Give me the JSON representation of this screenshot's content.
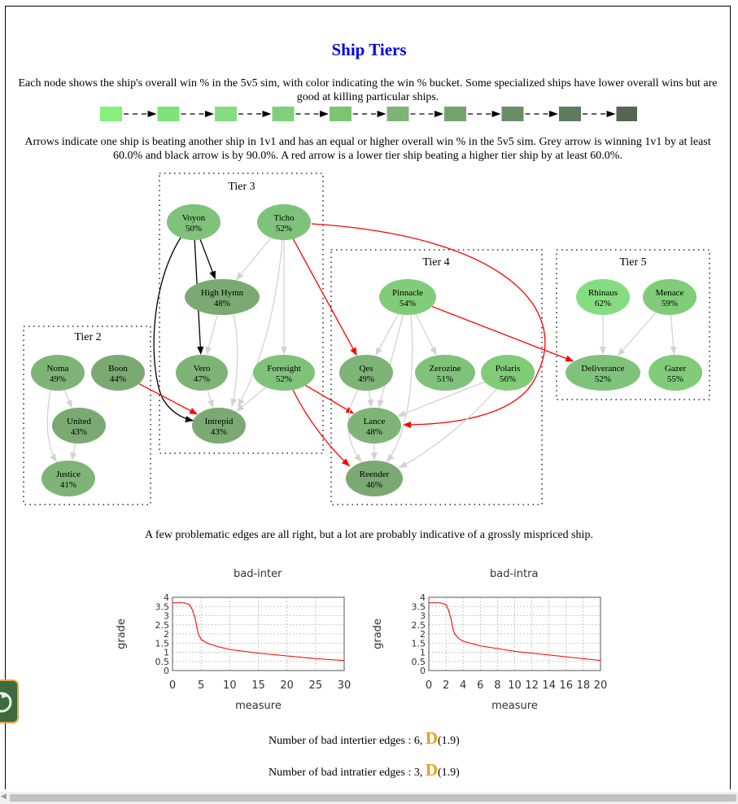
{
  "page": {
    "title": "Ship Tiers",
    "intro_text": "Each node shows the ship's overall win % in the 5v5 sim, with color indicating the win % bucket. Some specialized ships have lower overall wins but are good at killing particular ships.",
    "arrows_text": "Arrows indicate one ship is beating another ship in 1v1 and has an equal or higher overall win % in the 5v5 sim. Grey arrow is winning 1v1 by at least 60.0% and black arrow is by 90.0%. A red arrow is a lower tier ship beating a higher tier ship by at least 60.0%.",
    "caption": "A few problematic edges are all right, but a lot are probably indicative of a grossly mispriced ship."
  },
  "colors": {
    "title": "#0000e6",
    "grade": "#e8a020",
    "grey_arrow": "#d3d3d3",
    "black_arrow": "#000000",
    "red_arrow": "#ff0000",
    "plot_line": "#ff0000"
  },
  "legend_colors": [
    "#85f07e",
    "#7fe27a",
    "#86dc80",
    "#7fd07a",
    "#7cc472",
    "#7fb477",
    "#76a270",
    "#6b8c69",
    "#5e7a5f",
    "#566653"
  ],
  "graph": {
    "tiers": [
      {
        "id": "tier3",
        "label": "Tier 3"
      },
      {
        "id": "tier4",
        "label": "Tier 4"
      },
      {
        "id": "tier5",
        "label": "Tier 5"
      },
      {
        "id": "tier2",
        "label": "Tier 2"
      }
    ],
    "nodes": [
      {
        "id": "voyon",
        "name": "Voyon",
        "pct": "50%",
        "color": "#7fc27a"
      },
      {
        "id": "ticho",
        "name": "Ticho",
        "pct": "52%",
        "color": "#7fc27a"
      },
      {
        "id": "highhymn",
        "name": "High Hymn",
        "pct": "48%",
        "color": "#7aaa72"
      },
      {
        "id": "vero",
        "name": "Vero",
        "pct": "47%",
        "color": "#7fb477"
      },
      {
        "id": "foresight",
        "name": "Foresight",
        "pct": "52%",
        "color": "#7fc27a"
      },
      {
        "id": "intrepid",
        "name": "Intrepid",
        "pct": "43%",
        "color": "#7aaa72"
      },
      {
        "id": "pinnacle",
        "name": "Pinnacle",
        "pct": "54%",
        "color": "#80cc78"
      },
      {
        "id": "qes",
        "name": "Qes",
        "pct": "49%",
        "color": "#7fb477"
      },
      {
        "id": "zerozine",
        "name": "Zerozine",
        "pct": "51%",
        "color": "#7fc27a"
      },
      {
        "id": "polaris",
        "name": "Polaris",
        "pct": "56%",
        "color": "#80cc78"
      },
      {
        "id": "lance",
        "name": "Lance",
        "pct": "48%",
        "color": "#7fb477"
      },
      {
        "id": "reender",
        "name": "Reender",
        "pct": "46%",
        "color": "#7aaa72"
      },
      {
        "id": "rhinaus",
        "name": "Rhinaus",
        "pct": "62%",
        "color": "#86dc80"
      },
      {
        "id": "menace",
        "name": "Menace",
        "pct": "59%",
        "color": "#80cc78"
      },
      {
        "id": "deliverance",
        "name": "Deliverance",
        "pct": "52%",
        "color": "#7fc27a"
      },
      {
        "id": "gazer",
        "name": "Gazer",
        "pct": "55%",
        "color": "#80cc78"
      },
      {
        "id": "noma",
        "name": "Noma",
        "pct": "49%",
        "color": "#7fb477"
      },
      {
        "id": "boon",
        "name": "Boon",
        "pct": "44%",
        "color": "#7aaa72"
      },
      {
        "id": "united",
        "name": "United",
        "pct": "43%",
        "color": "#7aaa72"
      },
      {
        "id": "justice",
        "name": "Justice",
        "pct": "41%",
        "color": "#7fb477"
      }
    ],
    "edges": [
      {
        "from": "voyon",
        "to": "highhymn",
        "kind": "black"
      },
      {
        "from": "voyon",
        "to": "vero",
        "kind": "black"
      },
      {
        "from": "voyon",
        "to": "intrepid",
        "kind": "black"
      },
      {
        "from": "ticho",
        "to": "highhymn",
        "kind": "grey"
      },
      {
        "from": "ticho",
        "to": "foresight",
        "kind": "grey"
      },
      {
        "from": "ticho",
        "to": "intrepid",
        "kind": "grey"
      },
      {
        "from": "ticho",
        "to": "qes",
        "kind": "red"
      },
      {
        "from": "ticho",
        "to": "lance",
        "kind": "red"
      },
      {
        "from": "highhymn",
        "to": "vero",
        "kind": "grey"
      },
      {
        "from": "highhymn",
        "to": "intrepid",
        "kind": "grey"
      },
      {
        "from": "vero",
        "to": "intrepid",
        "kind": "grey"
      },
      {
        "from": "foresight",
        "to": "intrepid",
        "kind": "grey"
      },
      {
        "from": "foresight",
        "to": "lance",
        "kind": "red"
      },
      {
        "from": "foresight",
        "to": "reender",
        "kind": "red"
      },
      {
        "from": "boon",
        "to": "intrepid",
        "kind": "red"
      },
      {
        "from": "pinnacle",
        "to": "qes",
        "kind": "grey"
      },
      {
        "from": "pinnacle",
        "to": "zerozine",
        "kind": "grey"
      },
      {
        "from": "pinnacle",
        "to": "lance",
        "kind": "grey"
      },
      {
        "from": "pinnacle",
        "to": "reender",
        "kind": "grey"
      },
      {
        "from": "pinnacle",
        "to": "deliverance",
        "kind": "red"
      },
      {
        "from": "qes",
        "to": "lance",
        "kind": "grey"
      },
      {
        "from": "qes",
        "to": "reender",
        "kind": "grey"
      },
      {
        "from": "polaris",
        "to": "lance",
        "kind": "grey"
      },
      {
        "from": "polaris",
        "to": "reender",
        "kind": "grey"
      },
      {
        "from": "lance",
        "to": "reender",
        "kind": "grey"
      },
      {
        "from": "rhinaus",
        "to": "deliverance",
        "kind": "grey"
      },
      {
        "from": "menace",
        "to": "deliverance",
        "kind": "grey"
      },
      {
        "from": "menace",
        "to": "gazer",
        "kind": "grey"
      },
      {
        "from": "noma",
        "to": "united",
        "kind": "grey"
      },
      {
        "from": "noma",
        "to": "justice",
        "kind": "grey"
      },
      {
        "from": "united",
        "to": "justice",
        "kind": "grey"
      }
    ]
  },
  "chart_data": [
    {
      "type": "line",
      "title": "bad-inter",
      "xlabel": "measure",
      "ylabel": "grade",
      "xlim": [
        0,
        30
      ],
      "ylim": [
        0,
        4
      ],
      "xticks": [
        "0",
        "5",
        "10",
        "15",
        "20",
        "25",
        "30"
      ],
      "yticks": [
        "0",
        "0.5",
        "1",
        "1.5",
        "2",
        "2.5",
        "3",
        "3.5",
        "4"
      ],
      "grid": true,
      "series": [
        {
          "x": [
            0,
            2,
            3,
            3.5,
            4,
            4.3,
            4.5,
            5,
            6,
            8,
            10,
            15,
            20,
            25,
            30
          ],
          "y": [
            3.7,
            3.7,
            3.6,
            3.3,
            2.8,
            2.3,
            2.0,
            1.7,
            1.5,
            1.3,
            1.15,
            0.95,
            0.8,
            0.65,
            0.55
          ]
        }
      ]
    },
    {
      "type": "line",
      "title": "bad-intra",
      "xlabel": "measure",
      "ylabel": "grade",
      "xlim": [
        0,
        20
      ],
      "ylim": [
        0,
        4
      ],
      "xticks": [
        "0",
        "2",
        "4",
        "6",
        "8",
        "10",
        "12",
        "14",
        "16",
        "18",
        "20"
      ],
      "yticks": [
        "0",
        "0.5",
        "1",
        "1.5",
        "2",
        "2.5",
        "3",
        "3.5",
        "4"
      ],
      "grid": true,
      "series": [
        {
          "x": [
            0,
            1.3,
            2,
            2.3,
            2.6,
            2.8,
            3,
            3.5,
            4,
            6,
            8,
            10,
            12,
            14,
            16,
            18,
            20
          ],
          "y": [
            3.7,
            3.7,
            3.6,
            3.3,
            2.8,
            2.3,
            2.0,
            1.75,
            1.6,
            1.35,
            1.2,
            1.05,
            0.95,
            0.85,
            0.75,
            0.65,
            0.55
          ]
        }
      ]
    }
  ],
  "stats": {
    "inter_label": "Number of bad intertier edges : 6,",
    "inter_grade": "D",
    "inter_score": "(1.9)",
    "intra_label": "Number of bad intratier edges : 3,",
    "intra_grade": "D",
    "intra_score": "(1.9)"
  }
}
